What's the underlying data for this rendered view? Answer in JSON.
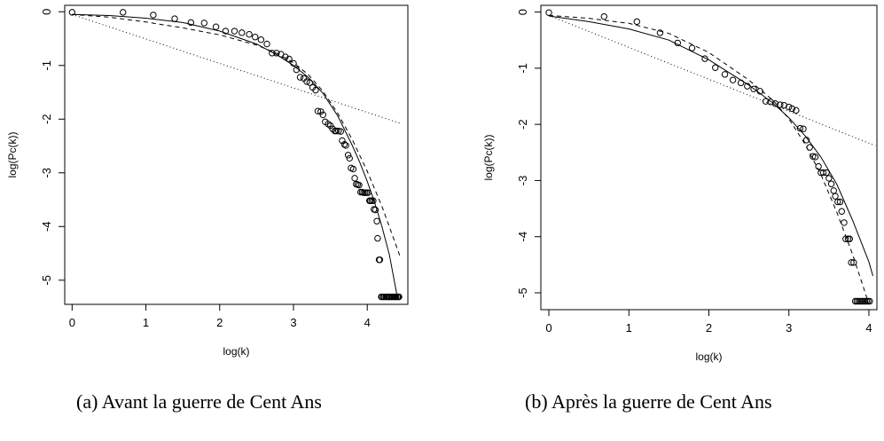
{
  "captions": {
    "a": "(a) Avant la guerre de Cent Ans",
    "b": "(b) Après la guerre de Cent Ans"
  },
  "chart_data": [
    {
      "type": "scatter",
      "xlabel": "log(k)",
      "ylabel": "log(Pc(k))",
      "xlim": [
        -0.1,
        4.55
      ],
      "ylim": [
        -5.45,
        0.12
      ],
      "xticks": [
        "0",
        "1",
        "2",
        "3",
        "4"
      ],
      "yticks": [
        "0",
        "-1",
        "-2",
        "-3",
        "-4",
        "-5"
      ],
      "series": [
        {
          "style": "points-open-circle",
          "x": [
            0,
            0.69,
            1.1,
            1.39,
            1.61,
            1.79,
            1.95,
            2.08,
            2.2,
            2.3,
            2.4,
            2.48,
            2.56,
            2.64,
            2.71,
            2.77,
            2.83,
            2.89,
            2.94,
            3.0,
            3.04,
            3.09,
            3.14,
            3.18,
            3.22,
            3.26,
            3.3,
            3.33,
            3.37,
            3.4,
            3.43,
            3.47,
            3.5,
            3.53,
            3.56,
            3.58,
            3.61,
            3.64,
            3.66,
            3.69,
            3.71,
            3.74,
            3.76,
            3.78,
            3.81,
            3.83,
            3.85,
            3.87,
            3.89,
            3.91,
            3.93,
            3.95,
            3.97,
            3.99,
            4.01,
            4.03,
            4.04,
            4.06,
            4.08,
            4.09,
            4.11,
            4.13,
            4.14,
            4.16,
            4.17,
            4.19,
            4.2,
            4.22,
            4.23,
            4.25,
            4.26,
            4.28,
            4.29,
            4.3,
            4.32,
            4.33,
            4.34,
            4.36,
            4.37,
            4.38,
            4.39,
            4.41,
            4.42,
            4.43
          ],
          "y": [
            -0.01,
            -0.01,
            -0.06,
            -0.13,
            -0.2,
            -0.21,
            -0.28,
            -0.36,
            -0.36,
            -0.39,
            -0.42,
            -0.47,
            -0.52,
            -0.6,
            -0.77,
            -0.77,
            -0.79,
            -0.84,
            -0.88,
            -0.96,
            -1.08,
            -1.22,
            -1.24,
            -1.3,
            -1.32,
            -1.41,
            -1.46,
            -1.85,
            -1.86,
            -1.92,
            -2.05,
            -2.09,
            -2.12,
            -2.18,
            -2.22,
            -2.22,
            -2.22,
            -2.23,
            -2.4,
            -2.47,
            -2.49,
            -2.67,
            -2.73,
            -2.91,
            -2.93,
            -3.1,
            -3.21,
            -3.22,
            -3.23,
            -3.36,
            -3.36,
            -3.37,
            -3.37,
            -3.37,
            -3.37,
            -3.52,
            -3.52,
            -3.52,
            -3.52,
            -3.68,
            -3.69,
            -3.9,
            -4.22,
            -4.62,
            -4.62,
            -5.31,
            -5.31,
            -5.31,
            -5.31,
            -5.31,
            -5.31,
            -5.31,
            -5.31,
            -5.31,
            -5.31,
            -5.31,
            -5.31,
            -5.31,
            -5.31,
            -5.31,
            -5.31,
            -5.31,
            -5.31,
            -5.31
          ]
        },
        {
          "style": "solid",
          "x": [
            0,
            0.5,
            1.0,
            1.5,
            2.0,
            2.5,
            2.8,
            3.0,
            3.2,
            3.4,
            3.6,
            3.8,
            3.9,
            4.0,
            4.1,
            4.2,
            4.3,
            4.4
          ],
          "y": [
            -0.05,
            -0.07,
            -0.12,
            -0.2,
            -0.36,
            -0.6,
            -0.82,
            -1.0,
            -1.22,
            -1.52,
            -1.94,
            -2.5,
            -2.81,
            -3.16,
            -3.55,
            -4.01,
            -4.53,
            -5.26
          ]
        },
        {
          "style": "dashed",
          "x": [
            0,
            0.5,
            1.0,
            1.5,
            2.0,
            2.5,
            2.8,
            3.0,
            3.2,
            3.4,
            3.6,
            3.8,
            4.0,
            4.2,
            4.45
          ],
          "y": [
            -0.05,
            -0.1,
            -0.19,
            -0.3,
            -0.43,
            -0.62,
            -0.79,
            -0.95,
            -1.17,
            -1.48,
            -1.89,
            -2.39,
            -2.97,
            -3.63,
            -4.58
          ]
        },
        {
          "style": "dotted",
          "x": [
            0,
            4.45
          ],
          "y": [
            -0.05,
            -2.08
          ]
        }
      ]
    },
    {
      "type": "scatter",
      "xlabel": "log(k)",
      "ylabel": "log(Pc(k))",
      "xlim": [
        -0.1,
        4.1
      ],
      "ylim": [
        -5.3,
        0.12
      ],
      "xticks": [
        "0",
        "1",
        "2",
        "3",
        "4"
      ],
      "yticks": [
        "0",
        "-1",
        "-2",
        "-3",
        "-4",
        "-5"
      ],
      "series": [
        {
          "style": "points-open-circle",
          "x": [
            0,
            0.69,
            1.1,
            1.39,
            1.61,
            1.79,
            1.95,
            2.08,
            2.2,
            2.3,
            2.4,
            2.48,
            2.56,
            2.64,
            2.71,
            2.77,
            2.83,
            2.89,
            2.94,
            3.0,
            3.04,
            3.09,
            3.14,
            3.18,
            3.22,
            3.26,
            3.3,
            3.33,
            3.37,
            3.4,
            3.43,
            3.47,
            3.5,
            3.53,
            3.56,
            3.58,
            3.61,
            3.64,
            3.66,
            3.69,
            3.71,
            3.74,
            3.76,
            3.78,
            3.81,
            3.83,
            3.85,
            3.87,
            3.89,
            3.91,
            3.93,
            3.95,
            3.97,
            3.99,
            4.01
          ],
          "y": [
            -0.01,
            -0.08,
            -0.17,
            -0.37,
            -0.55,
            -0.64,
            -0.83,
            -0.99,
            -1.11,
            -1.21,
            -1.26,
            -1.32,
            -1.37,
            -1.41,
            -1.59,
            -1.6,
            -1.63,
            -1.65,
            -1.66,
            -1.69,
            -1.72,
            -1.75,
            -2.07,
            -2.08,
            -2.28,
            -2.41,
            -2.57,
            -2.58,
            -2.75,
            -2.86,
            -2.86,
            -2.86,
            -2.96,
            -3.06,
            -3.18,
            -3.28,
            -3.38,
            -3.38,
            -3.55,
            -3.75,
            -4.04,
            -4.04,
            -4.04,
            -4.46,
            -4.46,
            -5.15,
            -5.15,
            -5.15,
            -5.15,
            -5.15,
            -5.15,
            -5.15,
            -5.15,
            -5.15,
            -5.15
          ]
        },
        {
          "style": "solid",
          "x": [
            0,
            0.5,
            1.0,
            1.5,
            2.0,
            2.5,
            2.8,
            3.0,
            3.2,
            3.4,
            3.6,
            3.8,
            4.0,
            4.05
          ],
          "y": [
            -0.07,
            -0.17,
            -0.3,
            -0.5,
            -0.85,
            -1.3,
            -1.62,
            -1.88,
            -2.2,
            -2.58,
            -3.07,
            -3.72,
            -4.45,
            -4.7
          ]
        },
        {
          "style": "dashed",
          "x": [
            0,
            0.5,
            1.0,
            1.5,
            2.0,
            2.5,
            2.8,
            3.0,
            3.2,
            3.4,
            3.6,
            3.8,
            4.0
          ],
          "y": [
            -0.06,
            -0.11,
            -0.2,
            -0.38,
            -0.72,
            -1.21,
            -1.57,
            -1.9,
            -2.35,
            -2.89,
            -3.57,
            -4.33,
            -5.2
          ]
        },
        {
          "style": "dotted",
          "x": [
            0,
            4.08
          ],
          "y": [
            -0.06,
            -2.38
          ]
        }
      ]
    }
  ]
}
